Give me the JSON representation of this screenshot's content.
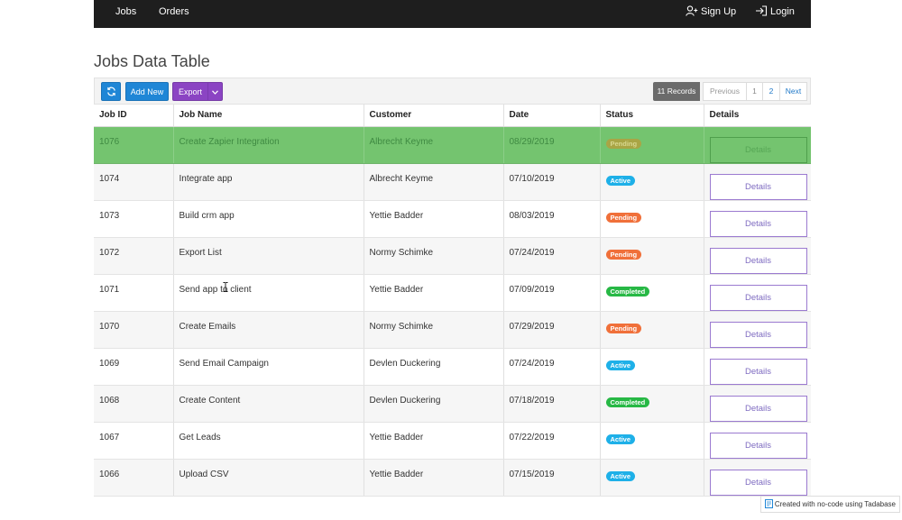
{
  "nav": {
    "left": [
      {
        "label": "Jobs"
      },
      {
        "label": "Orders"
      }
    ],
    "signup": "Sign Up",
    "login": "Login"
  },
  "page": {
    "title": "Jobs Data Table"
  },
  "toolbar": {
    "refresh_icon": "refresh-icon",
    "add_label": "Add New",
    "export_label": "Export",
    "records_label": "11 Records",
    "pager": {
      "previous": "Previous",
      "pages": [
        "1",
        "2"
      ],
      "next": "Next"
    }
  },
  "table": {
    "columns": [
      "Job ID",
      "Job Name",
      "Customer",
      "Date",
      "Status",
      "Details"
    ],
    "rows": [
      {
        "id": "1076",
        "name": "Create Zapier Integration",
        "customer": "Albrecht Keyme",
        "date": "08/29/2019",
        "status": "Pending",
        "status_kind": "pending",
        "details": "Details",
        "selected": true
      },
      {
        "id": "1074",
        "name": "Integrate app",
        "customer": "Albrecht Keyme",
        "date": "07/10/2019",
        "status": "Active",
        "status_kind": "active",
        "details": "Details"
      },
      {
        "id": "1073",
        "name": "Build crm app",
        "customer": "Yettie Badder",
        "date": "08/03/2019",
        "status": "Pending",
        "status_kind": "pending",
        "details": "Details"
      },
      {
        "id": "1072",
        "name": "Export List",
        "customer": "Normy Schimke",
        "date": "07/24/2019",
        "status": "Pending",
        "status_kind": "pending",
        "details": "Details"
      },
      {
        "id": "1071",
        "name": "Send app to client",
        "customer": "Yettie Badder",
        "date": "07/09/2019",
        "status": "Completed",
        "status_kind": "completed",
        "details": "Details"
      },
      {
        "id": "1070",
        "name": "Create Emails",
        "customer": "Normy Schimke",
        "date": "07/29/2019",
        "status": "Pending",
        "status_kind": "pending",
        "details": "Details"
      },
      {
        "id": "1069",
        "name": "Send Email Campaign",
        "customer": "Devlen Duckering",
        "date": "07/24/2019",
        "status": "Active",
        "status_kind": "active",
        "details": "Details"
      },
      {
        "id": "1068",
        "name": "Create Content",
        "customer": "Devlen Duckering",
        "date": "07/18/2019",
        "status": "Completed",
        "status_kind": "completed",
        "details": "Details"
      },
      {
        "id": "1067",
        "name": "Get Leads",
        "customer": "Yettie Badder",
        "date": "07/22/2019",
        "status": "Active",
        "status_kind": "active",
        "details": "Details"
      },
      {
        "id": "1066",
        "name": "Upload CSV",
        "customer": "Yettie Badder",
        "date": "07/15/2019",
        "status": "Active",
        "status_kind": "active",
        "details": "Details"
      }
    ]
  },
  "footer": {
    "badge_text": "Created with no-code using Tadabase"
  },
  "colors": {
    "topbar": "#1e1e1e",
    "primary_button": "#1f86d6",
    "export_button": "#8b44c3",
    "selected_row": "#74c46f",
    "status_pending": "#f0703a",
    "status_active": "#1eb0e8",
    "status_completed": "#27b845"
  }
}
